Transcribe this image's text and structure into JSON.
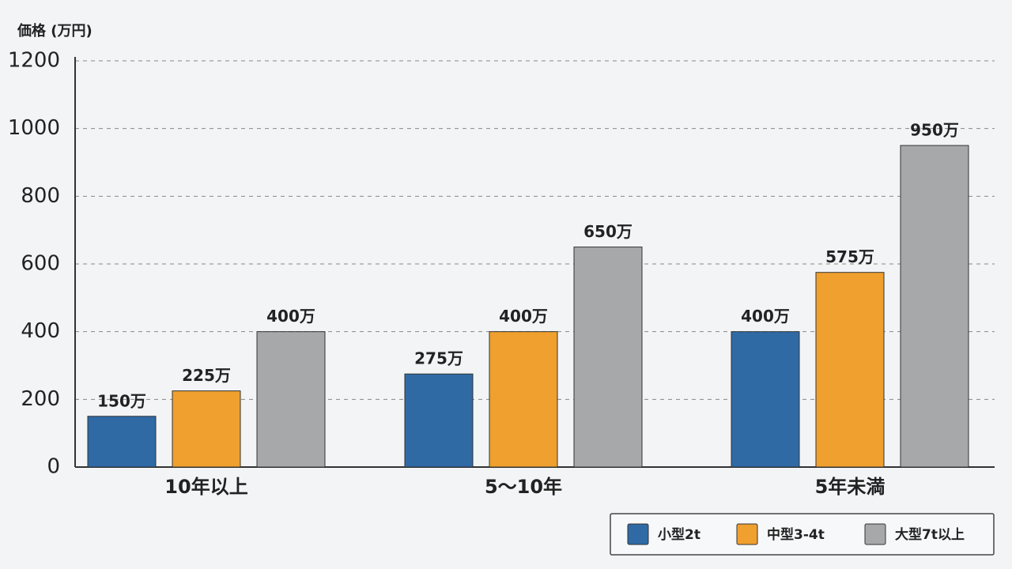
{
  "chart_data": {
    "type": "bar",
    "y_label": "価格 (万円)",
    "categories": [
      "10年以上",
      "5〜10年",
      "5年未満"
    ],
    "series": [
      {
        "name": "小型2t",
        "color": "#2f6aa5",
        "values": [
          150,
          275,
          400
        ],
        "value_labels": [
          "150万",
          "275万",
          "400万"
        ]
      },
      {
        "name": "中型3-4t",
        "color": "#f0a02e",
        "values": [
          225,
          400,
          575
        ],
        "value_labels": [
          "225万",
          "400万",
          "575万"
        ]
      },
      {
        "name": "大型7t以上",
        "color": "#a7a8aa",
        "values": [
          400,
          650,
          950
        ],
        "value_labels": [
          "400万",
          "650万",
          "950万"
        ]
      }
    ],
    "ylim": [
      0,
      1200
    ],
    "yticks": [
      0,
      200,
      400,
      600,
      800,
      1000,
      1200
    ],
    "grid": true,
    "legend": "bottom-right"
  }
}
